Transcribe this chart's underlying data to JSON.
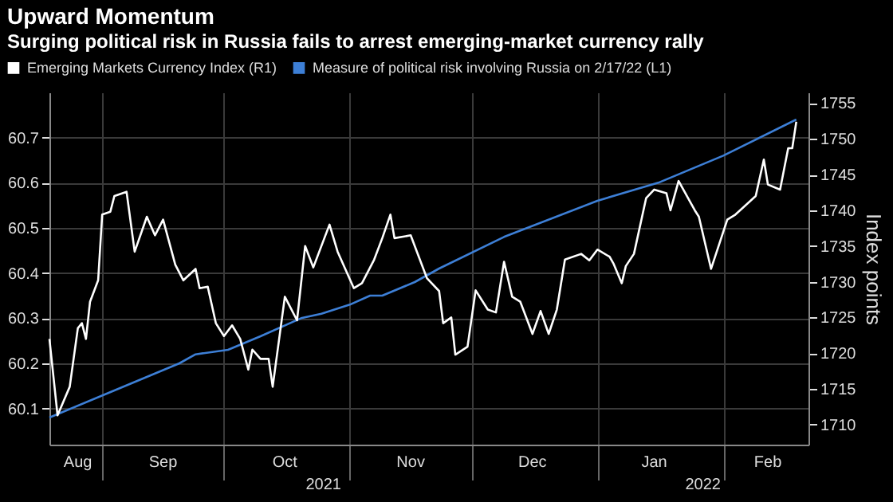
{
  "chart_data": {
    "type": "line",
    "title": "Upward Momentum",
    "subtitle": "Surging political risk in Russia fails to arrest emerging-market currency rally",
    "y2label": "Index points",
    "series": [
      {
        "name": "Emerging Markets Currency Index (R1)",
        "color": "#ffffff",
        "axis": "y2",
        "x": [
          "2021-08-19",
          "2021-08-21",
          "2021-08-24",
          "2021-08-26",
          "2021-08-27",
          "2021-08-28",
          "2021-08-29",
          "2021-08-31",
          "2021-09-01",
          "2021-09-03",
          "2021-09-04",
          "2021-09-06",
          "2021-09-07",
          "2021-09-09",
          "2021-09-12",
          "2021-09-14",
          "2021-09-16",
          "2021-09-19",
          "2021-09-21",
          "2021-09-24",
          "2021-09-25",
          "2021-09-27",
          "2021-09-29",
          "2021-10-01",
          "2021-10-03",
          "2021-10-05",
          "2021-10-07",
          "2021-10-08",
          "2021-10-10",
          "2021-10-12",
          "2021-10-13",
          "2021-10-16",
          "2021-10-19",
          "2021-10-21",
          "2021-10-23",
          "2021-10-27",
          "2021-10-29",
          "2021-11-02",
          "2021-11-04",
          "2021-11-07",
          "2021-11-09",
          "2021-11-11",
          "2021-11-12",
          "2021-11-16",
          "2021-11-18",
          "2021-11-20",
          "2021-11-23",
          "2021-11-24",
          "2021-11-26",
          "2021-11-27",
          "2021-11-30",
          "2021-12-02",
          "2021-12-05",
          "2021-12-07",
          "2021-12-09",
          "2021-12-11",
          "2021-12-13",
          "2021-12-16",
          "2021-12-18",
          "2021-12-20",
          "2021-12-22",
          "2021-12-24",
          "2021-12-28",
          "2021-12-30",
          "2022-01-01",
          "2022-01-04",
          "2022-01-05",
          "2022-01-07",
          "2022-01-08",
          "2022-01-10",
          "2022-01-13",
          "2022-01-15",
          "2022-01-18",
          "2022-01-19",
          "2022-01-21",
          "2022-01-25",
          "2022-01-26",
          "2022-01-29",
          "2022-02-02",
          "2022-02-04",
          "2022-02-09",
          "2022-02-11",
          "2022-02-12",
          "2022-02-15",
          "2022-02-17",
          "2022-02-18",
          "2022-02-19"
        ],
        "values": [
          1722.0,
          1711.3,
          1715.3,
          1723.5,
          1724.2,
          1722.0,
          1727.2,
          1730.2,
          1739.4,
          1739.8,
          1742.0,
          1742.4,
          1742.6,
          1734.2,
          1739.1,
          1736.5,
          1738.7,
          1732.4,
          1730.2,
          1731.8,
          1729.1,
          1729.3,
          1724.2,
          1722.4,
          1723.9,
          1722.0,
          1717.7,
          1720.5,
          1719.2,
          1719.2,
          1715.3,
          1727.9,
          1724.6,
          1735.0,
          1732.0,
          1738.0,
          1734.2,
          1729.1,
          1729.8,
          1733.1,
          1736.1,
          1739.4,
          1736.1,
          1736.5,
          1733.5,
          1730.5,
          1728.7,
          1724.2,
          1725.0,
          1719.8,
          1720.9,
          1728.8,
          1726.1,
          1725.7,
          1732.8,
          1727.9,
          1727.2,
          1722.7,
          1725.9,
          1722.7,
          1726.1,
          1733.1,
          1733.9,
          1733.0,
          1734.5,
          1733.5,
          1732.5,
          1729.8,
          1732.2,
          1733.9,
          1741.7,
          1742.9,
          1742.4,
          1740.0,
          1744.1,
          1740.0,
          1739.1,
          1731.8,
          1738.7,
          1739.4,
          1742.0,
          1747.1,
          1743.6,
          1742.9,
          1748.7,
          1748.7,
          1752.4
        ]
      },
      {
        "name": "Measure of political risk involving Russia on 2/17/22 (L1)",
        "color": "#3d7fd6",
        "axis": "y",
        "x": [
          "2021-08-19",
          "2021-09-04",
          "2021-09-20",
          "2021-09-24",
          "2021-10-02",
          "2021-10-10",
          "2021-10-20",
          "2021-10-25",
          "2021-11-01",
          "2021-11-06",
          "2021-11-09",
          "2021-11-17",
          "2021-11-23",
          "2021-12-09",
          "2022-01-01",
          "2022-01-16",
          "2022-02-01",
          "2022-02-19"
        ],
        "values": [
          60.08,
          60.14,
          60.2,
          60.22,
          60.23,
          60.26,
          60.3,
          60.31,
          60.33,
          60.35,
          60.35,
          60.38,
          60.41,
          60.48,
          60.56,
          60.6,
          60.66,
          60.74
        ]
      }
    ],
    "xlim": [
      "2021-08-19",
      "2022-02-22"
    ],
    "xticks": [
      {
        "value": "2021-09-01",
        "label": null
      },
      {
        "value": "2021-10-01",
        "label": null
      },
      {
        "value": "2021-11-01",
        "label": null
      },
      {
        "value": "2021-12-01",
        "label": null
      },
      {
        "value": "2022-01-01",
        "label": null
      },
      {
        "value": "2022-02-01",
        "label": null
      },
      {
        "value": "2021-08-26",
        "label": "Aug"
      },
      {
        "value": "2021-09-16",
        "label": "Sep"
      },
      {
        "value": "2021-10-16",
        "label": "Oct"
      },
      {
        "value": "2021-11-16",
        "label": "Nov"
      },
      {
        "value": "2021-12-16",
        "label": "Dec"
      },
      {
        "value": "2022-01-15",
        "label": "Jan"
      },
      {
        "value": "2022-02-12",
        "label": "Feb"
      }
    ],
    "ylim": [
      60.02,
      60.8
    ],
    "yticks": [
      60.1,
      60.2,
      60.3,
      60.4,
      60.5,
      60.6,
      60.7
    ],
    "y2lim": [
      1707.2,
      1756.5
    ],
    "y2ticks": [
      1710,
      1715,
      1720,
      1725,
      1730,
      1735,
      1740,
      1745,
      1750,
      1755
    ],
    "annotations": [
      "2021",
      "2022"
    ],
    "grid": true,
    "legend": "top left"
  }
}
